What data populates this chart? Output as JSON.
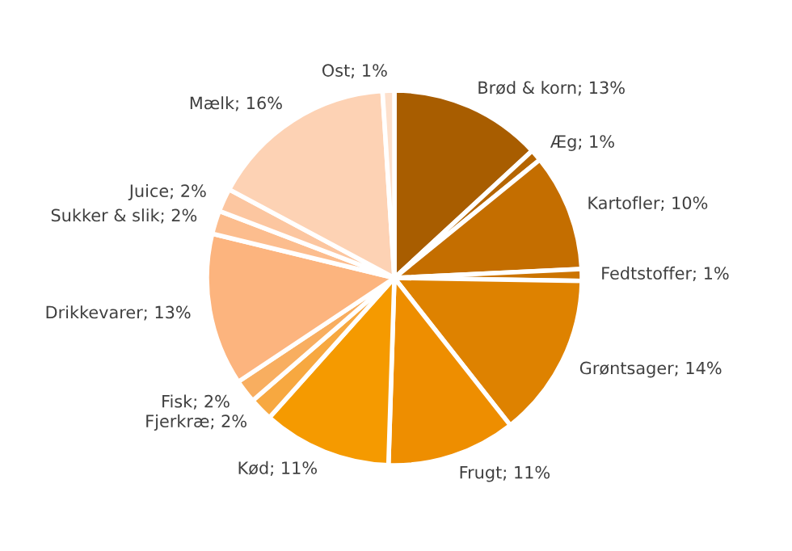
{
  "chart_data": {
    "type": "pie",
    "categories": [
      "Brød & korn",
      "Æg",
      "Kartofler",
      "Fedtstoffer",
      "Grøntsager",
      "Frugt",
      "Kød",
      "Fjerkræ",
      "Fisk",
      "Drikkevarer",
      "Sukker & slik",
      "Juice",
      "Mælk",
      "Ost"
    ],
    "values": [
      13,
      1,
      10,
      1,
      14,
      11,
      11,
      2,
      2,
      13,
      2,
      2,
      16,
      1
    ],
    "value_labels": [
      "13%",
      "1%",
      "10%",
      "1%",
      "14%",
      "11%",
      "11%",
      "2%",
      "2%",
      "13%",
      "2%",
      "2%",
      "16%",
      "1%"
    ],
    "colors": [
      "#a85d00",
      "#b56500",
      "#c46e00",
      "#cc7400",
      "#de8200",
      "#ee8e00",
      "#f59a00",
      "#f7a840",
      "#f8ae60",
      "#fcb47e",
      "#fcbd8e",
      "#fcc6a0",
      "#fdd2b4",
      "#fde0cc"
    ],
    "legend": false
  }
}
